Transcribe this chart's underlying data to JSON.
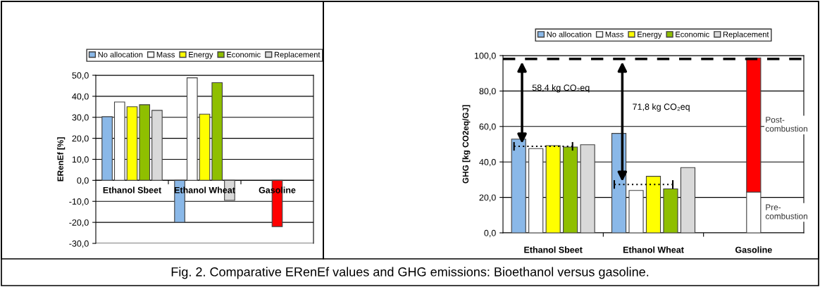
{
  "chart_data": [
    {
      "type": "bar",
      "ylabel": "ERenEf [%]",
      "categories": [
        "Ethanol Sbeet",
        "Ethanol Wheat",
        "Gasoline"
      ],
      "series": [
        {
          "name": "No allocation",
          "color": "#8ab8e8",
          "values": [
            30.3,
            -20.0,
            null
          ]
        },
        {
          "name": "Mass",
          "color": "#ffffff",
          "values": [
            37.3,
            48.8,
            null
          ]
        },
        {
          "name": "Energy",
          "color": "#ffff00",
          "values": [
            35.0,
            31.5,
            null
          ]
        },
        {
          "name": "Economic",
          "color": "#8fbf00",
          "values": [
            36.0,
            46.5,
            null
          ]
        },
        {
          "name": "Replacement",
          "color": "#d9d9d9",
          "values": [
            33.3,
            -9.5,
            null
          ]
        },
        {
          "color": "#ff0000",
          "values": [
            null,
            null,
            -22.0
          ]
        }
      ],
      "ylim": [
        -30,
        50
      ],
      "yticks": [
        {
          "value": -30,
          "label": "-30,0"
        },
        {
          "value": -20,
          "label": "-20,0"
        },
        {
          "value": -10,
          "label": "-10,0"
        },
        {
          "value": 0,
          "label": "0,0"
        },
        {
          "value": 10,
          "label": "10,0"
        },
        {
          "value": 20,
          "label": "20,0"
        },
        {
          "value": 30,
          "label": "30,0"
        },
        {
          "value": 40,
          "label": "40,0"
        },
        {
          "value": 50,
          "label": "50,0"
        }
      ],
      "grid": "y",
      "legend": "top"
    },
    {
      "type": "bar",
      "ylabel": "GHG [kg CO2eq/GJ]",
      "categories": [
        "Ethanol Sbeet",
        "Ethanol Wheat",
        "Gasoline"
      ],
      "series": [
        {
          "name": "No allocation",
          "color": "#8ab8e8",
          "values": [
            52.9,
            56.1,
            null
          ]
        },
        {
          "name": "Mass",
          "color": "#ffffff",
          "values": [
            47.5,
            23.9,
            null
          ]
        },
        {
          "name": "Energy",
          "color": "#ffff00",
          "values": [
            49.2,
            31.9,
            null
          ]
        },
        {
          "name": "Economic",
          "color": "#8fbf00",
          "values": [
            48.4,
            24.8,
            null
          ]
        },
        {
          "name": "Replacement",
          "color": "#d9d9d9",
          "values": [
            49.7,
            36.8,
            null
          ]
        },
        {
          "name": "Pre-\ncombustion",
          "color": "#ffffff",
          "values": [
            null,
            null,
            23.0
          ]
        },
        {
          "name": "Post-\ncombustion",
          "color": "#ff0000",
          "values": [
            null,
            null,
            75.7
          ],
          "base": [
            null,
            null,
            23.0
          ]
        }
      ],
      "ylim": [
        0,
        100
      ],
      "yticks": [
        {
          "value": 0,
          "label": "0,0"
        },
        {
          "value": 20,
          "label": "20,0"
        },
        {
          "value": 40,
          "label": "40,0"
        },
        {
          "value": 60,
          "label": "60,0"
        },
        {
          "value": 80,
          "label": "80,0"
        },
        {
          "value": 100,
          "label": "100,0"
        }
      ],
      "ref_lines": [
        {
          "axis": "y",
          "value": 98.1,
          "line_style": "dashed",
          "color": "#000000"
        },
        {
          "axis": "y",
          "value": 48.8,
          "line_style": "dotted",
          "color": "#000000"
        },
        {
          "axis": "y",
          "value": 27.3,
          "line_style": "dotted",
          "color": "#000000"
        }
      ],
      "annotations": [
        "58,4 kg CO₂eq",
        "71,8 kg CO₂eq",
        "Fig. 2. Comparative ERenEf values and GHG emissions: Bioethanol versus gasoline."
      ],
      "grid": "y",
      "legend": "top"
    }
  ]
}
